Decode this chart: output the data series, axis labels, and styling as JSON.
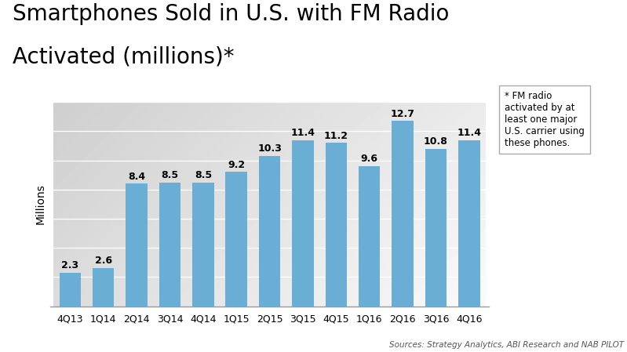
{
  "categories": [
    "4Q13",
    "1Q14",
    "2Q14",
    "3Q14",
    "4Q14",
    "1Q15",
    "2Q15",
    "3Q15",
    "4Q15",
    "1Q16",
    "2Q16",
    "3Q16",
    "4Q16"
  ],
  "values": [
    2.3,
    2.6,
    8.4,
    8.5,
    8.5,
    9.2,
    10.3,
    11.4,
    11.2,
    9.6,
    12.7,
    10.8,
    11.4
  ],
  "bar_color": "#6aaed6",
  "title_line1": "Smartphones Sold in U.S. with FM Radio",
  "title_line2": "Activated (millions)*",
  "ylabel": "Millions",
  "ylim": [
    0,
    14
  ],
  "plot_bg_light": "#f4f4f4",
  "plot_bg_dark": "#d0d0d0",
  "annotation_box_text": "* FM radio\nactivated by at\nleast one major\nU.S. carrier using\nthese phones.",
  "source_text": "Sources: Strategy Analytics, ABI Research and NAB PILOT",
  "title_fontsize": 20,
  "ylabel_fontsize": 10,
  "tick_fontsize": 9,
  "bar_label_fontsize": 9,
  "gridline_vals": [
    2,
    4,
    6,
    8,
    10,
    12,
    14
  ]
}
